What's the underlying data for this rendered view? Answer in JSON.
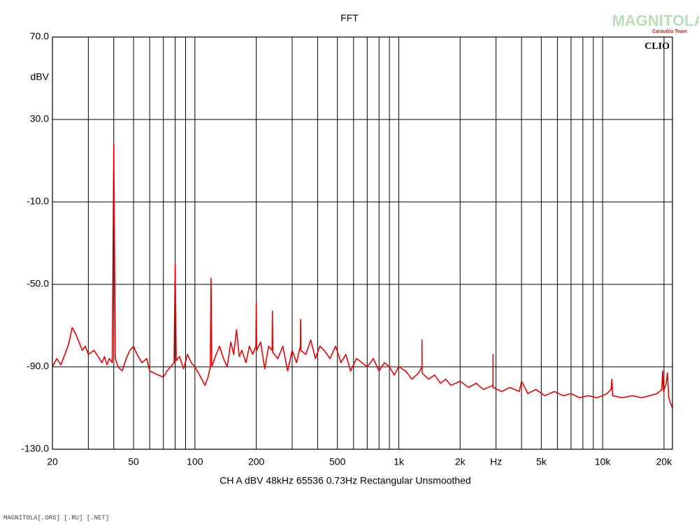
{
  "chart_data": {
    "type": "line",
    "title": "FFT",
    "ylabel": "dBV",
    "footer": "CH A   dBV   48kHz   65536   0.73Hz   Rectangular   Unsmoothed",
    "logo": "CLIO",
    "watermark": "MAGNITOLA",
    "watermark_sub": "Caraudio Team",
    "credit": "MAGNITOLA[.ORG] [.RU] [.NET]",
    "log_x": true,
    "grid": true,
    "xlim": [
      20,
      22000
    ],
    "ylim": [
      -130,
      70
    ],
    "xticks": [
      20,
      50,
      100,
      200,
      500,
      {
        "value": 1000,
        "label": "1k"
      },
      {
        "value": 2000,
        "label": "2k"
      },
      {
        "value": 3000,
        "label": "Hz"
      },
      {
        "value": 5000,
        "label": "5k"
      },
      {
        "value": 10000,
        "label": "10k"
      },
      {
        "value": 20000,
        "label": "20k"
      }
    ],
    "xgrid": [
      30,
      40,
      60,
      70,
      80,
      90,
      300,
      400,
      600,
      700,
      800,
      900,
      4000,
      6000,
      7000,
      8000,
      9000
    ],
    "yticks": [
      {
        "value": 70,
        "label": "70.0"
      },
      {
        "value": 30,
        "label": "30.0"
      },
      {
        "value": -10,
        "label": "-10.0"
      },
      {
        "value": -50,
        "label": "-50.0"
      },
      {
        "value": -90,
        "label": "-90.0"
      },
      {
        "value": -130,
        "label": "-130.0"
      }
    ],
    "x": [
      20,
      21,
      22,
      23,
      24,
      25,
      26,
      27,
      28,
      29,
      30,
      32,
      34,
      35,
      36,
      37,
      38,
      39.3,
      40,
      40.7,
      42,
      44,
      46,
      48,
      50,
      52,
      55,
      58,
      60,
      63,
      66,
      70,
      73,
      76,
      79,
      80,
      81,
      84,
      88,
      92,
      96,
      100,
      104,
      108,
      112,
      116,
      119,
      120,
      121,
      126,
      132,
      138,
      144,
      150,
      155,
      160,
      165,
      170,
      178,
      185,
      192,
      199,
      200,
      201,
      210,
      220,
      230,
      239,
      240,
      241,
      255,
      270,
      285,
      300,
      315,
      329,
      330,
      331,
      350,
      370,
      390,
      410,
      430,
      460,
      490,
      520,
      550,
      580,
      620,
      660,
      700,
      750,
      800,
      850,
      900,
      950,
      1000,
      1080,
      1160,
      1250,
      1299,
      1300,
      1301,
      1400,
      1500,
      1600,
      1700,
      1800,
      2000,
      2200,
      2400,
      2600,
      2899,
      2900,
      2901,
      3200,
      3500,
      3900,
      4000,
      4300,
      4700,
      5200,
      5800,
      6400,
      7000,
      7700,
      8500,
      9400,
      10000,
      10500,
      11000,
      11100,
      11200,
      12500,
      14000,
      15500,
      17000,
      18500,
      19500,
      19700,
      19900,
      20500,
      20800,
      21100,
      21600,
      22000
    ],
    "series": [
      {
        "name": "CH A",
        "color": "#ee0000",
        "values": [
          -90,
          -86,
          -89,
          -84,
          -79,
          -71,
          -74,
          -78,
          -82,
          -80,
          -84,
          -82,
          -86,
          -88,
          -85,
          -89,
          -86,
          -88,
          18,
          -86,
          -90,
          -92,
          -86,
          -82,
          -80,
          -84,
          -88,
          -86,
          -92,
          -93,
          -94,
          -95,
          -92,
          -90,
          -88,
          -40,
          -87,
          -85,
          -91,
          -84,
          -88,
          -90,
          -93,
          -96,
          -99,
          -95,
          -90,
          -47,
          -90,
          -85,
          -80,
          -86,
          -90,
          -78,
          -84,
          -72,
          -85,
          -82,
          -88,
          -80,
          -84,
          -80,
          -59,
          -82,
          -78,
          -91,
          -80,
          -82,
          -63,
          -83,
          -86,
          -80,
          -92,
          -82,
          -88,
          -80,
          -67,
          -82,
          -84,
          -77,
          -86,
          -80,
          -82,
          -86,
          -80,
          -88,
          -84,
          -92,
          -86,
          -88,
          -90,
          -86,
          -92,
          -88,
          -90,
          -94,
          -90,
          -92,
          -96,
          -93,
          -90,
          -77,
          -93,
          -96,
          -94,
          -98,
          -96,
          -99,
          -97,
          -100,
          -98,
          -101,
          -99,
          -84,
          -100,
          -102,
          -100,
          -102,
          -97,
          -103,
          -101,
          -104,
          -102,
          -104,
          -103,
          -105,
          -104,
          -105,
          -104,
          -103,
          -101,
          -96,
          -104,
          -105,
          -104,
          -105,
          -104,
          -103,
          -101,
          -92,
          -102,
          -98,
          -93,
          -105,
          -108,
          -110
        ]
      }
    ]
  }
}
